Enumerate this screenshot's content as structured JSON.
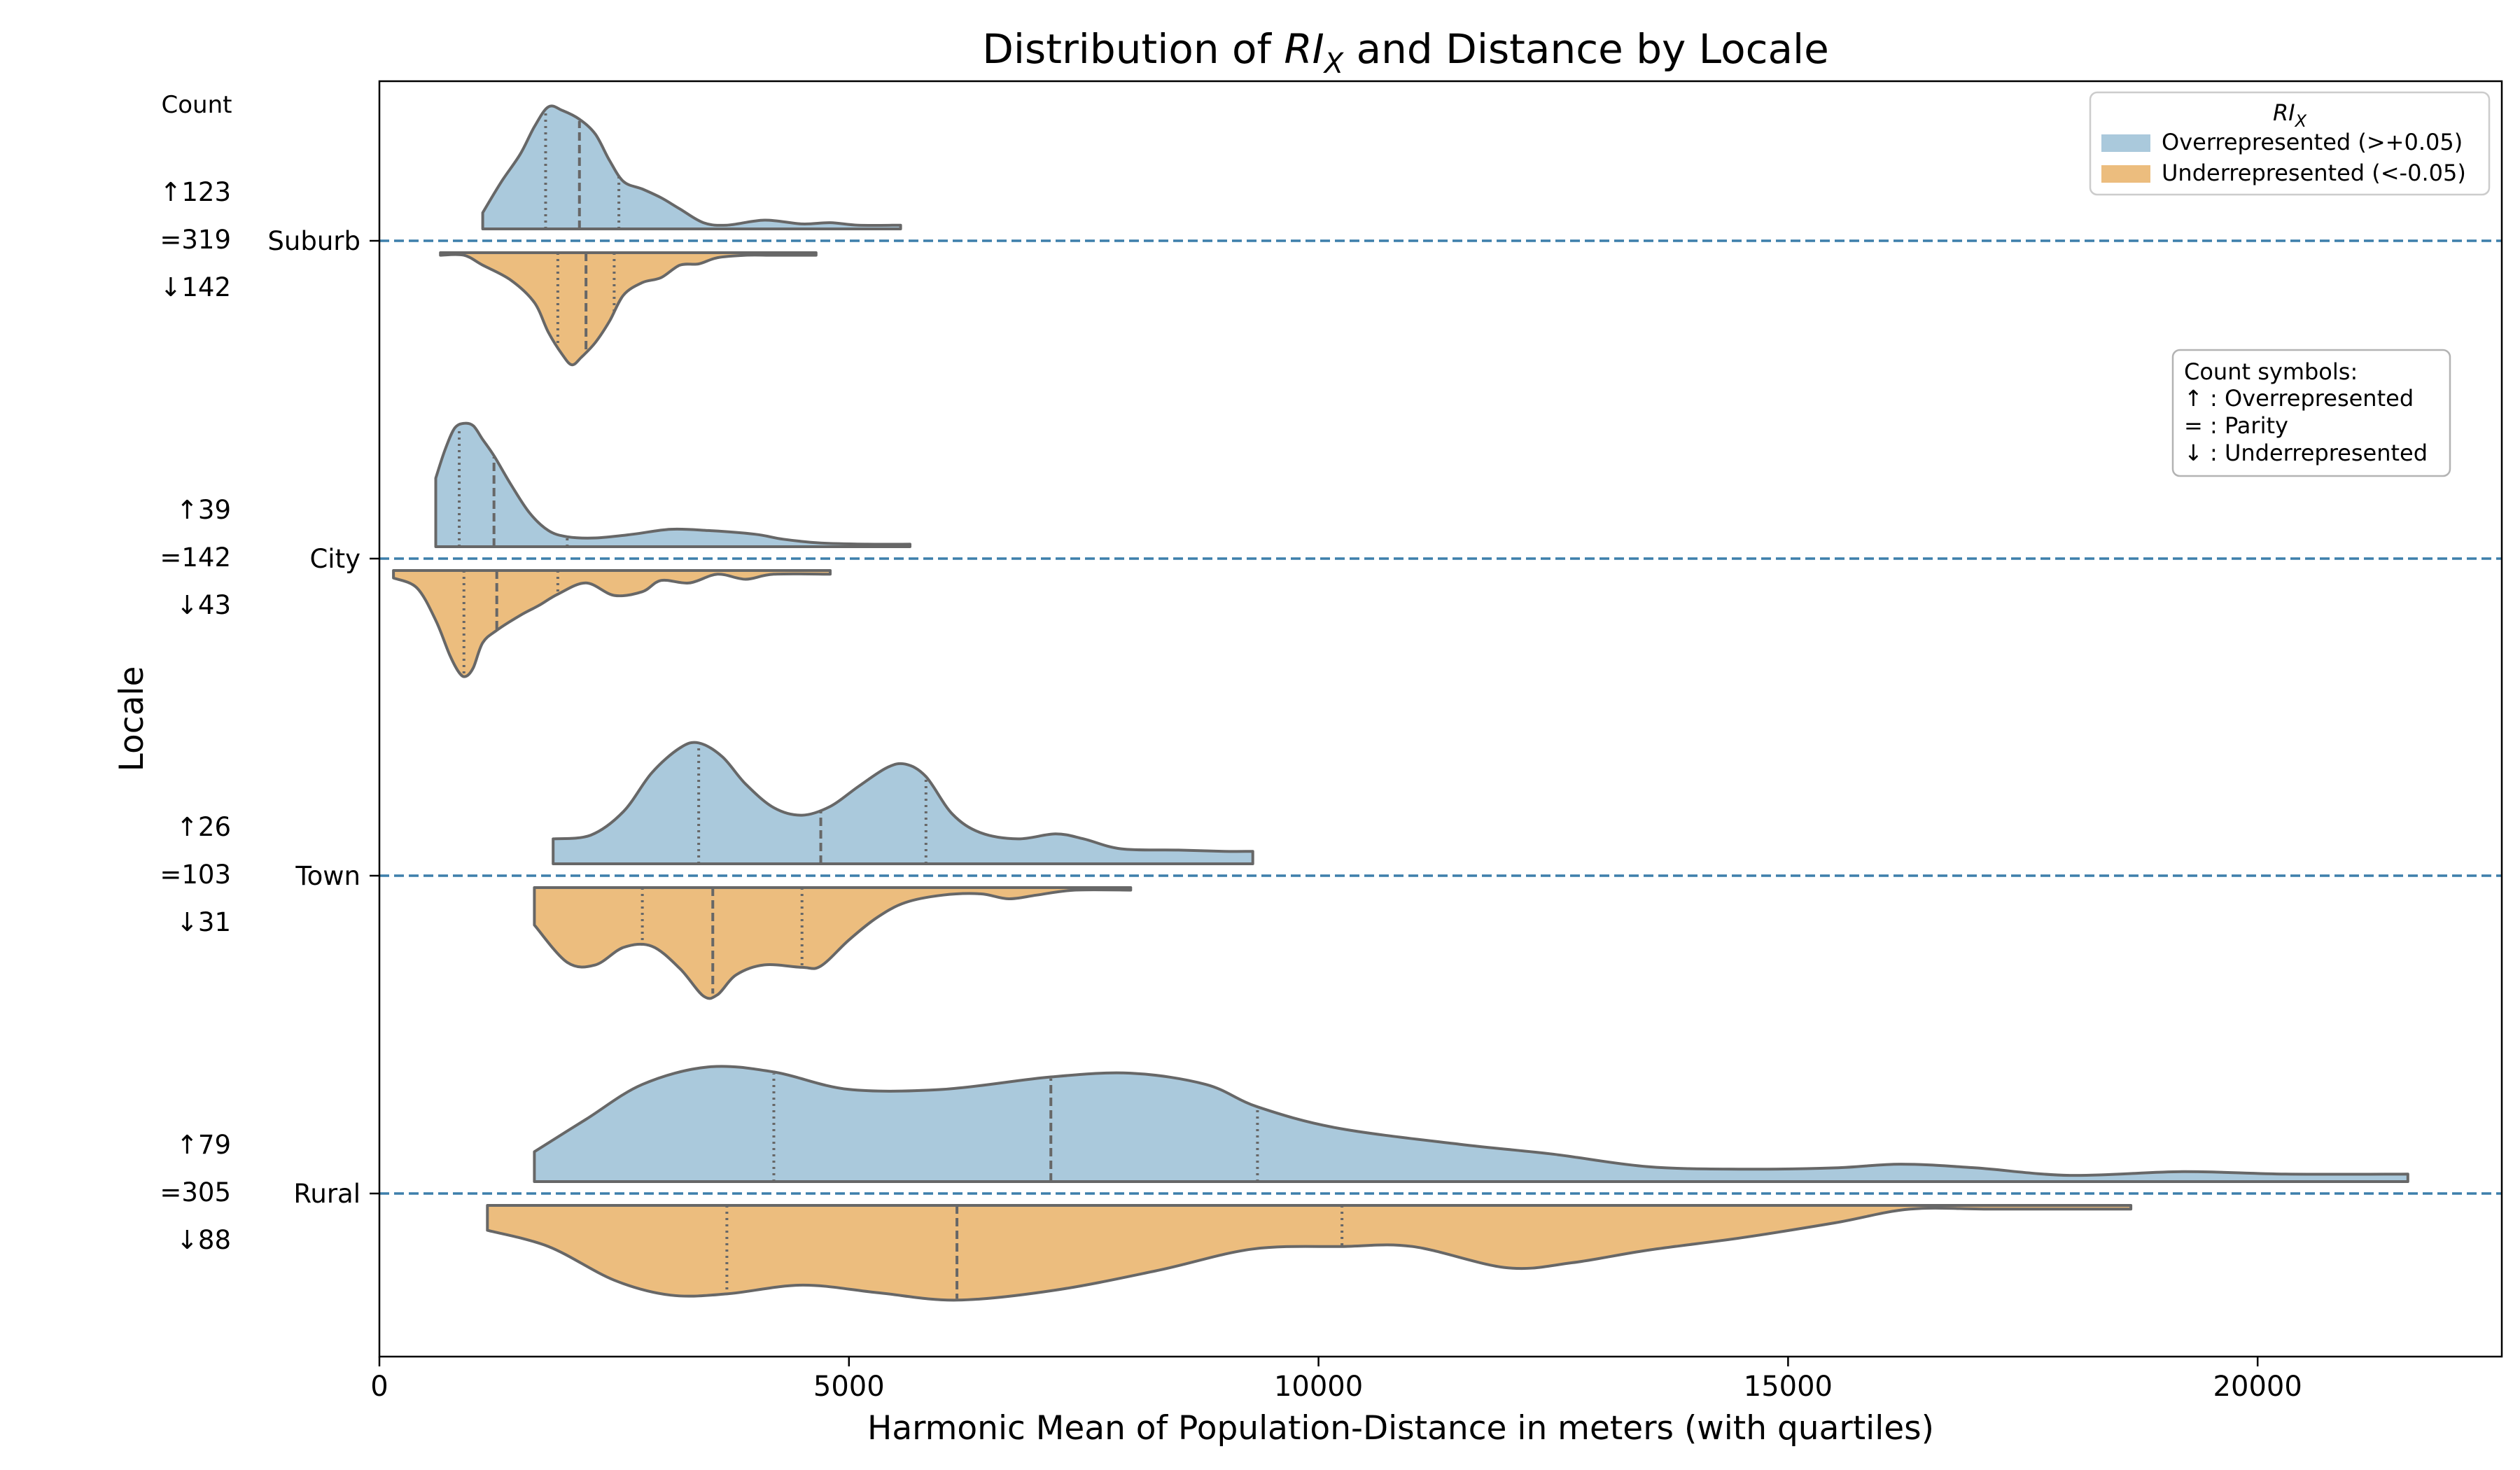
{
  "chart_data": {
    "type": "violin",
    "title_parts": [
      "Distribution of ",
      "RI",
      "X",
      " and Distance by Locale"
    ],
    "xlabel": "Harmonic Mean of Population-Distance in meters (with quartiles)",
    "ylabel": "Locale",
    "xlim": [
      0,
      22600
    ],
    "xticks": [
      0,
      5000,
      10000,
      15000,
      20000
    ],
    "xtick_labels": [
      "0",
      "5000",
      "10000",
      "15000",
      "20000"
    ],
    "count_header": "Count",
    "legend": {
      "title_parts": [
        "RI",
        "X"
      ],
      "placement": "upper-right",
      "entries": [
        {
          "label": "Overrepresented (>+0.05)",
          "color": "#aac9dc"
        },
        {
          "label": "Underrepresented (<-0.05)",
          "color": "#ecbd7e"
        }
      ]
    },
    "count_symbols": {
      "title": "Count symbols:",
      "lines": [
        "↑ : Overrepresented",
        "= : Parity",
        "↓ : Underrepresented"
      ]
    },
    "colors": {
      "over": "#aac9dc",
      "under": "#ecbd7e",
      "edge": "#676767",
      "refline": "#3d7fab"
    },
    "categories": [
      {
        "name": "Suburb",
        "counts": [
          "↑123",
          "=319",
          "↓142"
        ],
        "over": {
          "range": [
            1100,
            5550
          ],
          "quartiles": [
            1770,
            2130,
            2550
          ],
          "profile": [
            [
              1100,
              0.13
            ],
            [
              1300,
              0.38
            ],
            [
              1500,
              0.6
            ],
            [
              1650,
              0.82
            ],
            [
              1800,
              0.98
            ],
            [
              1950,
              0.95
            ],
            [
              2130,
              0.88
            ],
            [
              2300,
              0.76
            ],
            [
              2450,
              0.55
            ],
            [
              2600,
              0.38
            ],
            [
              2800,
              0.32
            ],
            [
              3000,
              0.25
            ],
            [
              3200,
              0.16
            ],
            [
              3450,
              0.05
            ],
            [
              3700,
              0.03
            ],
            [
              4100,
              0.07
            ],
            [
              4500,
              0.04
            ],
            [
              4800,
              0.05
            ],
            [
              5100,
              0.03
            ],
            [
              5550,
              0.03
            ]
          ]
        },
        "under": {
          "range": [
            650,
            4650
          ],
          "quartiles": [
            1900,
            2200,
            2500
          ],
          "profile": [
            [
              650,
              0.02
            ],
            [
              900,
              0.02
            ],
            [
              1100,
              0.1
            ],
            [
              1400,
              0.22
            ],
            [
              1650,
              0.4
            ],
            [
              1800,
              0.64
            ],
            [
              1950,
              0.82
            ],
            [
              2050,
              0.9
            ],
            [
              2150,
              0.84
            ],
            [
              2300,
              0.72
            ],
            [
              2450,
              0.55
            ],
            [
              2600,
              0.34
            ],
            [
              2800,
              0.24
            ],
            [
              3000,
              0.2
            ],
            [
              3200,
              0.1
            ],
            [
              3400,
              0.09
            ],
            [
              3600,
              0.04
            ],
            [
              3900,
              0.02
            ],
            [
              4200,
              0.02
            ],
            [
              4650,
              0.02
            ]
          ]
        }
      },
      {
        "name": "City",
        "counts": [
          "↑39",
          "=142",
          "↓43"
        ],
        "over": {
          "range": [
            600,
            5650
          ],
          "quartiles": [
            850,
            1220,
            2000
          ],
          "profile": [
            [
              600,
              0.55
            ],
            [
              700,
              0.78
            ],
            [
              800,
              0.95
            ],
            [
              900,
              0.99
            ],
            [
              1000,
              0.97
            ],
            [
              1100,
              0.86
            ],
            [
              1220,
              0.73
            ],
            [
              1400,
              0.5
            ],
            [
              1600,
              0.27
            ],
            [
              1800,
              0.13
            ],
            [
              2000,
              0.08
            ],
            [
              2300,
              0.07
            ],
            [
              2700,
              0.1
            ],
            [
              3100,
              0.14
            ],
            [
              3500,
              0.13
            ],
            [
              4000,
              0.1
            ],
            [
              4300,
              0.06
            ],
            [
              4700,
              0.03
            ],
            [
              5200,
              0.02
            ],
            [
              5650,
              0.02
            ]
          ]
        },
        "under": {
          "range": [
            150,
            4800
          ],
          "quartiles": [
            900,
            1250,
            1900
          ],
          "profile": [
            [
              150,
              0.06
            ],
            [
              400,
              0.14
            ],
            [
              600,
              0.4
            ],
            [
              750,
              0.68
            ],
            [
              850,
              0.82
            ],
            [
              920,
              0.85
            ],
            [
              1000,
              0.78
            ],
            [
              1100,
              0.58
            ],
            [
              1250,
              0.48
            ],
            [
              1500,
              0.36
            ],
            [
              1700,
              0.28
            ],
            [
              1900,
              0.19
            ],
            [
              2200,
              0.1
            ],
            [
              2500,
              0.2
            ],
            [
              2800,
              0.17
            ],
            [
              3000,
              0.08
            ],
            [
              3300,
              0.1
            ],
            [
              3600,
              0.03
            ],
            [
              3900,
              0.07
            ],
            [
              4200,
              0.03
            ],
            [
              4800,
              0.03
            ]
          ]
        }
      },
      {
        "name": "Town",
        "counts": [
          "↑26",
          "=103",
          "↓31"
        ],
        "over": {
          "range": [
            1850,
            9300
          ],
          "quartiles": [
            3400,
            4700,
            5820
          ],
          "profile": [
            [
              1850,
              0.2
            ],
            [
              2250,
              0.23
            ],
            [
              2600,
              0.42
            ],
            [
              2900,
              0.73
            ],
            [
              3200,
              0.93
            ],
            [
              3400,
              0.97
            ],
            [
              3650,
              0.86
            ],
            [
              3900,
              0.64
            ],
            [
              4200,
              0.45
            ],
            [
              4500,
              0.39
            ],
            [
              4800,
              0.46
            ],
            [
              5100,
              0.62
            ],
            [
              5400,
              0.77
            ],
            [
              5600,
              0.8
            ],
            [
              5820,
              0.7
            ],
            [
              6100,
              0.4
            ],
            [
              6400,
              0.25
            ],
            [
              6800,
              0.2
            ],
            [
              7200,
              0.24
            ],
            [
              7500,
              0.2
            ],
            [
              7900,
              0.12
            ],
            [
              8500,
              0.11
            ],
            [
              9000,
              0.1
            ],
            [
              9300,
              0.1
            ]
          ]
        },
        "under": {
          "range": [
            1650,
            8000
          ],
          "quartiles": [
            2800,
            3550,
            4500
          ],
          "profile": [
            [
              1650,
              0.3
            ],
            [
              2000,
              0.6
            ],
            [
              2300,
              0.62
            ],
            [
              2600,
              0.48
            ],
            [
              2900,
              0.47
            ],
            [
              3200,
              0.65
            ],
            [
              3450,
              0.87
            ],
            [
              3600,
              0.86
            ],
            [
              3800,
              0.7
            ],
            [
              4100,
              0.62
            ],
            [
              4500,
              0.64
            ],
            [
              4700,
              0.63
            ],
            [
              5000,
              0.42
            ],
            [
              5300,
              0.24
            ],
            [
              5600,
              0.12
            ],
            [
              6000,
              0.06
            ],
            [
              6400,
              0.05
            ],
            [
              6700,
              0.09
            ],
            [
              7000,
              0.06
            ],
            [
              7400,
              0.02
            ],
            [
              8000,
              0.02
            ]
          ]
        }
      },
      {
        "name": "Rural",
        "counts": [
          "↑79",
          "=305",
          "↓88"
        ],
        "over": {
          "range": [
            1650,
            21600
          ],
          "quartiles": [
            4200,
            7150,
            9350
          ],
          "profile": [
            [
              1650,
              0.24
            ],
            [
              2200,
              0.5
            ],
            [
              2800,
              0.78
            ],
            [
              3500,
              0.92
            ],
            [
              4200,
              0.88
            ],
            [
              5000,
              0.74
            ],
            [
              6000,
              0.74
            ],
            [
              7150,
              0.84
            ],
            [
              8000,
              0.87
            ],
            [
              8800,
              0.78
            ],
            [
              9350,
              0.6
            ],
            [
              10200,
              0.43
            ],
            [
              11500,
              0.3
            ],
            [
              12500,
              0.22
            ],
            [
              13500,
              0.12
            ],
            [
              14500,
              0.1
            ],
            [
              15500,
              0.11
            ],
            [
              16200,
              0.14
            ],
            [
              17000,
              0.11
            ],
            [
              18000,
              0.05
            ],
            [
              19200,
              0.08
            ],
            [
              20300,
              0.06
            ],
            [
              21600,
              0.06
            ]
          ]
        },
        "under": {
          "range": [
            1150,
            18650
          ],
          "quartiles": [
            3700,
            6150,
            10250
          ],
          "profile": [
            [
              1150,
              0.2
            ],
            [
              1800,
              0.33
            ],
            [
              2500,
              0.6
            ],
            [
              3100,
              0.72
            ],
            [
              3700,
              0.71
            ],
            [
              4500,
              0.64
            ],
            [
              5300,
              0.7
            ],
            [
              6150,
              0.76
            ],
            [
              7200,
              0.68
            ],
            [
              8300,
              0.52
            ],
            [
              9300,
              0.35
            ],
            [
              10250,
              0.33
            ],
            [
              11000,
              0.33
            ],
            [
              12000,
              0.5
            ],
            [
              12700,
              0.46
            ],
            [
              13500,
              0.36
            ],
            [
              14500,
              0.26
            ],
            [
              15500,
              0.14
            ],
            [
              16300,
              0.03
            ],
            [
              17200,
              0.03
            ],
            [
              18650,
              0.03
            ]
          ]
        }
      }
    ]
  }
}
